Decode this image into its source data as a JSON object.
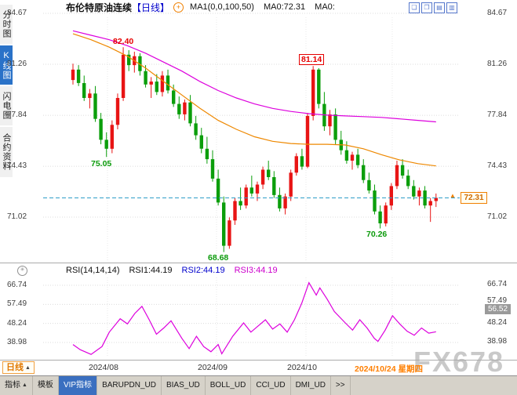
{
  "app": {
    "watermark": "FX678"
  },
  "icons": {
    "circle_plus": "+",
    "indicator_star": "✳",
    "triangle_up": "▲",
    "price_marker": "▲",
    "win_cascade": "❏",
    "win_tile": "❐",
    "win_chart": "▤",
    "win_split": "▥"
  },
  "sidebar": {
    "items": [
      {
        "label": "分时图"
      },
      {
        "label": "K线图",
        "active": true
      },
      {
        "label": "闪电图"
      },
      {
        "label": "合约资料"
      }
    ]
  },
  "header": {
    "title": "布伦特原油连续",
    "period_tag": "【日线】",
    "ma_settings": "MA1(0,0,100,50)",
    "ma0": "MA0:72.31",
    "ma0_extra": "MA0:"
  },
  "price_panel": {
    "yticks": [
      "84.67",
      "81.26",
      "77.84",
      "74.43",
      "71.02"
    ],
    "annotations": {
      "high_aug": "82.40",
      "low_aug": "75.05",
      "high_oct": "81.14",
      "low_oct": "70.26",
      "low_sep": "68.68"
    },
    "last_price": "72.31"
  },
  "rsi_panel": {
    "name": "RSI(14,14,14)",
    "rsi1": "RSI1:44.19",
    "rsi2": "RSI2:44.19",
    "rsi3": "RSI3:44.19",
    "yticks": [
      "66.74",
      "57.49",
      "48.24",
      "38.98"
    ],
    "right_value": "56.52"
  },
  "xaxis": {
    "period_button": "日线",
    "dates": [
      "2024/08",
      "2024/09",
      "2024/10"
    ],
    "current_date": "2024/10/24 星期四"
  },
  "tabs": [
    "指标",
    "模板",
    "VIP指标",
    "BARUPDN_UD",
    "BIAS_UD",
    "BOLL_UD",
    "CCI_UD",
    "DMI_UD",
    ">>"
  ],
  "chart_data": {
    "type": "candlestick",
    "title": "布伦特原油连续 日线 (Brent crude continuous, daily)",
    "ylim": [
      67.5,
      85.5
    ],
    "price_ticks": [
      84.67,
      81.26,
      77.84,
      74.43,
      71.02
    ],
    "last_price": 72.31,
    "up_color": "#e81414",
    "down_color": "#0b9e0b",
    "last_price_line_color": "#2f9ec9",
    "x_dates": [
      "2024/08",
      "2024/09",
      "2024/10",
      "2024/10/24 星期四"
    ],
    "candles": [
      [
        80.2,
        81.3,
        79.9,
        80.9
      ],
      [
        80.9,
        81.2,
        79.8,
        80.0
      ],
      [
        80.0,
        80.5,
        78.8,
        79.0
      ],
      [
        79.0,
        79.6,
        78.3,
        79.3
      ],
      [
        79.3,
        79.8,
        77.4,
        77.6
      ],
      [
        77.6,
        78.0,
        75.9,
        76.2
      ],
      [
        76.2,
        76.7,
        75.05,
        75.6
      ],
      [
        75.6,
        77.5,
        75.3,
        77.2
      ],
      [
        77.2,
        79.3,
        76.9,
        79.0
      ],
      [
        79.0,
        82.4,
        78.8,
        81.9
      ],
      [
        81.9,
        82.2,
        80.8,
        81.2
      ],
      [
        81.2,
        82.1,
        80.7,
        81.8
      ],
      [
        81.8,
        82.0,
        80.5,
        80.8
      ],
      [
        80.8,
        81.2,
        79.7,
        79.9
      ],
      [
        79.9,
        80.4,
        79.0,
        80.1
      ],
      [
        80.1,
        80.6,
        79.2,
        79.4
      ],
      [
        79.4,
        80.8,
        79.1,
        80.5
      ],
      [
        80.5,
        80.9,
        79.3,
        79.5
      ],
      [
        79.5,
        79.9,
        78.4,
        78.6
      ],
      [
        78.6,
        79.1,
        77.6,
        77.9
      ],
      [
        77.9,
        78.9,
        77.5,
        78.7
      ],
      [
        78.7,
        79.2,
        77.1,
        77.3
      ],
      [
        77.3,
        77.8,
        76.2,
        76.5
      ],
      [
        76.5,
        77.0,
        75.3,
        75.6
      ],
      [
        75.6,
        76.4,
        74.6,
        74.9
      ],
      [
        74.9,
        75.5,
        73.4,
        73.6
      ],
      [
        73.6,
        74.2,
        71.8,
        72.0
      ],
      [
        72.0,
        72.4,
        68.68,
        69.1
      ],
      [
        69.1,
        71.0,
        68.9,
        70.8
      ],
      [
        70.8,
        72.3,
        70.5,
        72.1
      ],
      [
        72.1,
        73.0,
        71.5,
        71.8
      ],
      [
        71.8,
        73.2,
        71.6,
        73.0
      ],
      [
        73.0,
        73.8,
        72.4,
        72.6
      ],
      [
        72.6,
        73.4,
        72.1,
        73.2
      ],
      [
        73.2,
        74.4,
        72.9,
        74.2
      ],
      [
        74.2,
        74.8,
        73.5,
        73.7
      ],
      [
        73.7,
        74.1,
        72.3,
        72.5
      ],
      [
        72.5,
        73.0,
        71.4,
        71.6
      ],
      [
        71.6,
        72.6,
        71.2,
        72.4
      ],
      [
        72.4,
        74.2,
        72.1,
        74.0
      ],
      [
        74.0,
        75.3,
        73.8,
        75.1
      ],
      [
        75.1,
        75.6,
        74.2,
        74.4
      ],
      [
        74.4,
        78.0,
        74.3,
        77.8
      ],
      [
        77.8,
        81.14,
        77.5,
        80.9
      ],
      [
        80.9,
        81.0,
        78.3,
        78.6
      ],
      [
        78.6,
        79.4,
        76.8,
        77.1
      ],
      [
        77.1,
        78.2,
        76.5,
        77.9
      ],
      [
        77.9,
        78.3,
        75.9,
        76.2
      ],
      [
        76.2,
        76.8,
        75.2,
        75.5
      ],
      [
        75.5,
        76.1,
        74.6,
        74.8
      ],
      [
        74.8,
        75.4,
        74.2,
        75.2
      ],
      [
        75.2,
        75.6,
        74.3,
        74.5
      ],
      [
        74.5,
        74.9,
        73.3,
        73.5
      ],
      [
        73.5,
        74.0,
        72.6,
        72.8
      ],
      [
        72.8,
        73.2,
        71.2,
        71.4
      ],
      [
        71.4,
        71.8,
        70.26,
        70.6
      ],
      [
        70.6,
        72.0,
        70.4,
        71.8
      ],
      [
        71.8,
        73.3,
        71.5,
        73.1
      ],
      [
        73.1,
        74.8,
        72.9,
        74.5
      ],
      [
        74.5,
        74.9,
        73.6,
        73.8
      ],
      [
        73.8,
        74.2,
        72.9,
        73.1
      ],
      [
        73.1,
        73.5,
        72.2,
        72.4
      ],
      [
        72.4,
        73.0,
        71.8,
        72.8
      ],
      [
        72.8,
        73.1,
        71.6,
        71.8
      ],
      [
        71.8,
        72.3,
        70.7,
        72.1
      ],
      [
        72.1,
        72.6,
        71.7,
        72.31
      ]
    ],
    "annotations": [
      {
        "text": "82.40",
        "price": 82.4
      },
      {
        "text": "75.05",
        "price": 75.05
      },
      {
        "text": "81.14",
        "price": 81.14
      },
      {
        "text": "70.26",
        "price": 70.26
      },
      {
        "text": "68.68",
        "price": 68.68
      }
    ],
    "ma_lines": [
      {
        "name": "ma-line-magenta",
        "color": "#dd00dd",
        "points": [
          [
            0,
            83.5
          ],
          [
            0.05,
            83.2
          ],
          [
            0.1,
            82.9
          ],
          [
            0.15,
            82.5
          ],
          [
            0.2,
            82.0
          ],
          [
            0.25,
            81.4
          ],
          [
            0.3,
            80.8
          ],
          [
            0.35,
            80.1
          ],
          [
            0.4,
            79.5
          ],
          [
            0.45,
            79.0
          ],
          [
            0.5,
            78.6
          ],
          [
            0.55,
            78.3
          ],
          [
            0.6,
            78.1
          ],
          [
            0.65,
            77.95
          ],
          [
            0.7,
            77.85
          ],
          [
            0.75,
            77.8
          ],
          [
            0.8,
            77.75
          ],
          [
            0.85,
            77.7
          ],
          [
            0.9,
            77.6
          ],
          [
            0.95,
            77.5
          ],
          [
            1,
            77.4
          ]
        ]
      },
      {
        "name": "ma-line-orange",
        "color": "#ee8800",
        "points": [
          [
            0,
            83.3
          ],
          [
            0.05,
            82.9
          ],
          [
            0.1,
            82.4
          ],
          [
            0.15,
            81.8
          ],
          [
            0.2,
            81.0
          ],
          [
            0.25,
            80.1
          ],
          [
            0.3,
            79.2
          ],
          [
            0.35,
            78.3
          ],
          [
            0.4,
            77.5
          ],
          [
            0.45,
            76.9
          ],
          [
            0.5,
            76.4
          ],
          [
            0.55,
            76.1
          ],
          [
            0.6,
            75.95
          ],
          [
            0.65,
            75.9
          ],
          [
            0.7,
            75.9
          ],
          [
            0.75,
            75.85
          ],
          [
            0.8,
            75.6
          ],
          [
            0.85,
            75.2
          ],
          [
            0.9,
            74.85
          ],
          [
            0.95,
            74.6
          ],
          [
            1,
            74.45
          ]
        ]
      }
    ],
    "rsi": {
      "type": "line",
      "name": "RSI(14,14,14)",
      "ticks": [
        66.74,
        57.49,
        48.24,
        38.98
      ],
      "last_values": {
        "RSI1": 44.19,
        "RSI2": 44.19,
        "RSI3": 44.19
      },
      "right_value": 56.52,
      "color": "#dd00dd",
      "points": [
        [
          0,
          38
        ],
        [
          0.02,
          35.5
        ],
        [
          0.05,
          33.2
        ],
        [
          0.08,
          37
        ],
        [
          0.1,
          44
        ],
        [
          0.13,
          50.5
        ],
        [
          0.15,
          48
        ],
        [
          0.17,
          53
        ],
        [
          0.19,
          56.5
        ],
        [
          0.21,
          50
        ],
        [
          0.23,
          43
        ],
        [
          0.25,
          46
        ],
        [
          0.27,
          49.5
        ],
        [
          0.3,
          41
        ],
        [
          0.32,
          36
        ],
        [
          0.34,
          42
        ],
        [
          0.36,
          37
        ],
        [
          0.38,
          34.5
        ],
        [
          0.4,
          38
        ],
        [
          0.41,
          33.5
        ],
        [
          0.44,
          42
        ],
        [
          0.47,
          48.5
        ],
        [
          0.49,
          44
        ],
        [
          0.51,
          47
        ],
        [
          0.53,
          50
        ],
        [
          0.55,
          45.5
        ],
        [
          0.57,
          48
        ],
        [
          0.59,
          44
        ],
        [
          0.61,
          50
        ],
        [
          0.63,
          58
        ],
        [
          0.65,
          68
        ],
        [
          0.67,
          62
        ],
        [
          0.68,
          65.5
        ],
        [
          0.7,
          60
        ],
        [
          0.72,
          54
        ],
        [
          0.75,
          48.5
        ],
        [
          0.77,
          45
        ],
        [
          0.79,
          50
        ],
        [
          0.81,
          46
        ],
        [
          0.83,
          41
        ],
        [
          0.84,
          39.5
        ],
        [
          0.86,
          45
        ],
        [
          0.88,
          52
        ],
        [
          0.9,
          48
        ],
        [
          0.92,
          44.5
        ],
        [
          0.94,
          42.5
        ],
        [
          0.96,
          46
        ],
        [
          0.98,
          43.5
        ],
        [
          1,
          44.19
        ]
      ]
    }
  }
}
